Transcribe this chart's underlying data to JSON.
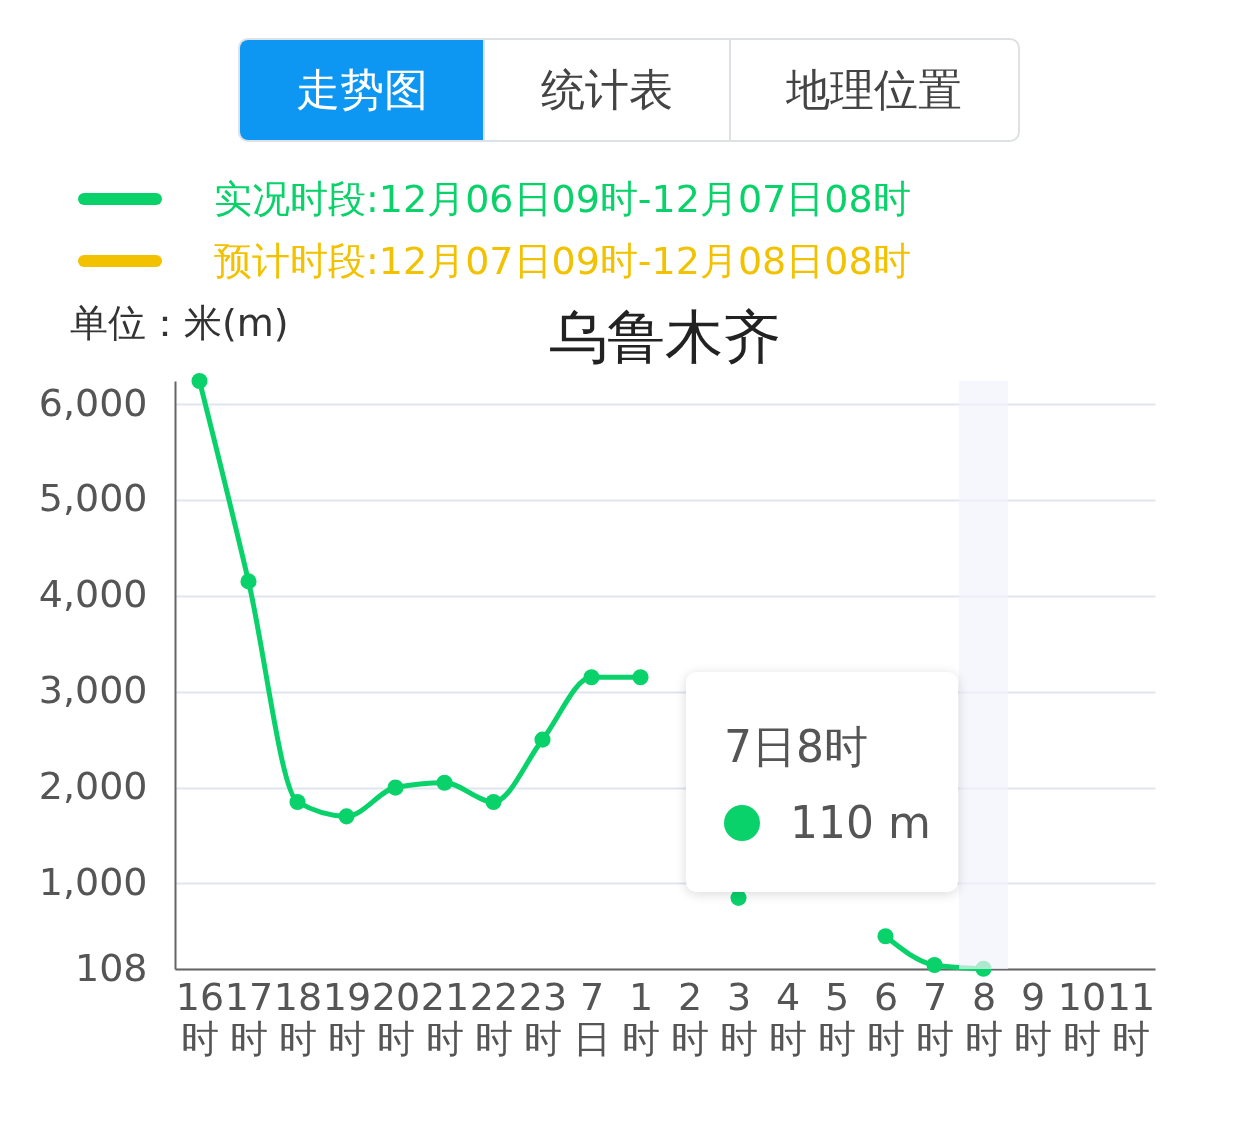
{
  "chart_data": {
    "type": "line",
    "title": "乌鲁木齐",
    "ylabel": "单位：米(m)",
    "categories": [
      "16\n时",
      "17\n时",
      "18\n时",
      "19\n时",
      "20\n时",
      "21\n时",
      "22\n时",
      "23\n时",
      "7\n日",
      "1\n时",
      "2\n时",
      "3\n时",
      "4\n时",
      "5\n时",
      "6\n时",
      "7\n时",
      "8\n时",
      "9\n时",
      "10\n时",
      "11\n时"
    ],
    "series": [
      {
        "name": "实况时段:12月06日09时-12月07日08时",
        "color": "#0ad26b",
        "values": [
          6240,
          4150,
          1850,
          1700,
          2000,
          2050,
          1850,
          2500,
          3150,
          3150,
          null,
          850,
          null,
          null,
          450,
          150,
          110,
          null,
          null,
          null
        ]
      },
      {
        "name": "预计时段:12月07日09时-12月08日08时",
        "color": "#f2c200",
        "values": [
          null,
          null,
          null,
          null,
          null,
          null,
          null,
          null,
          null,
          null,
          null,
          null,
          null,
          null,
          null,
          null,
          null,
          null,
          null,
          null
        ]
      }
    ],
    "ylim": [
      108,
      6240
    ],
    "yticks": [
      108,
      {
        "value": 1000,
        "label": "1,000"
      },
      {
        "value": 2000,
        "label": "2,000"
      },
      {
        "value": 3000,
        "label": "3,000"
      },
      {
        "value": 4000,
        "label": "4,000"
      },
      {
        "value": 5000,
        "label": "5,000"
      },
      {
        "value": 6000,
        "label": "6,000"
      }
    ],
    "grid": "y",
    "legend": "top",
    "marker": "circle",
    "line_style": "solid",
    "bands": [
      {
        "axis": "x",
        "from": "8\n时",
        "to": "8\n时",
        "color": "#f1f4fb"
      }
    ],
    "annotations": [
      "走势图",
      "统计表",
      "地理位置",
      "7日8时",
      "110 m"
    ]
  }
}
